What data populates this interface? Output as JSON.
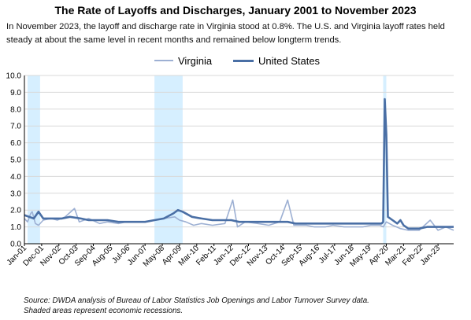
{
  "title": "The Rate of Layoffs and Discharges, January 2001 to November 2023",
  "subtitle": "In November 2023, the layoff and discharge rate in Virginia stood at 0.8%. The U.S. and Virginia layoff rates held steady at about the same level in recent months and remained below longterm trends.",
  "source_lines": [
    "Source: DWDA analysis of Bureau of Labor Statistics Job Openings and Labor Turnover Survey data.",
    "Shaded areas represent economic recessions."
  ],
  "colors": {
    "virginia": "#9db0d3",
    "united_states": "#4a6fa5",
    "recession": "#d6efff",
    "grid": "#d9d9d9"
  },
  "chart_data": {
    "type": "line",
    "title": "The Rate of Layoffs and Discharges, January 2001 to November 2023",
    "xlabel": "",
    "ylabel": "",
    "ylim": [
      0,
      10
    ],
    "yticks": [
      "0.0",
      "1.0",
      "2.0",
      "3.0",
      "4.0",
      "5.0",
      "6.0",
      "7.0",
      "8.0",
      "9.0",
      "10.0"
    ],
    "x_start": "2001-01",
    "x_end": "2023-11",
    "x_tick_labels": [
      "Jan-01",
      "Dec-01",
      "Nov-02",
      "Oct-03",
      "Sep-04",
      "Aug-05",
      "Jul-06",
      "Jun-07",
      "May-08",
      "Apr-09",
      "Mar-10",
      "Feb-11",
      "Jan-12",
      "Dec-12",
      "Nov-13",
      "Oct-14",
      "Sep-15",
      "Aug-16",
      "Jul-17",
      "Jun-18",
      "May-19",
      "Apr-20",
      "Mar-21",
      "Feb-22",
      "Jan-23"
    ],
    "grid": true,
    "legend": "top-center",
    "recessions": [
      [
        "2001-03",
        "2001-11"
      ],
      [
        "2007-12",
        "2009-06"
      ],
      [
        "2020-02",
        "2020-04"
      ]
    ],
    "series": [
      {
        "name": "Virginia",
        "points": [
          [
            "2001-01",
            1.5
          ],
          [
            "2001-03",
            1.3
          ],
          [
            "2001-05",
            1.8
          ],
          [
            "2001-06",
            1.9
          ],
          [
            "2001-08",
            1.2
          ],
          [
            "2001-10",
            1.1
          ],
          [
            "2002-01",
            1.4
          ],
          [
            "2002-06",
            1.5
          ],
          [
            "2002-10",
            1.4
          ],
          [
            "2003-03",
            1.6
          ],
          [
            "2003-09",
            2.1
          ],
          [
            "2003-12",
            1.3
          ],
          [
            "2004-06",
            1.5
          ],
          [
            "2005-01",
            1.2
          ],
          [
            "2005-06",
            1.3
          ],
          [
            "2006-01",
            1.2
          ],
          [
            "2006-06",
            1.3
          ],
          [
            "2007-01",
            1.3
          ],
          [
            "2007-06",
            1.3
          ],
          [
            "2008-01",
            1.4
          ],
          [
            "2008-06",
            1.5
          ],
          [
            "2009-01",
            1.6
          ],
          [
            "2009-04",
            1.4
          ],
          [
            "2009-08",
            1.3
          ],
          [
            "2010-01",
            1.1
          ],
          [
            "2010-06",
            1.2
          ],
          [
            "2011-01",
            1.1
          ],
          [
            "2011-09",
            1.2
          ],
          [
            "2012-02",
            2.6
          ],
          [
            "2012-05",
            1.0
          ],
          [
            "2012-10",
            1.3
          ],
          [
            "2013-06",
            1.2
          ],
          [
            "2014-01",
            1.1
          ],
          [
            "2014-08",
            1.3
          ],
          [
            "2015-01",
            2.6
          ],
          [
            "2015-05",
            1.1
          ],
          [
            "2016-01",
            1.1
          ],
          [
            "2016-06",
            1.0
          ],
          [
            "2017-01",
            1.0
          ],
          [
            "2017-06",
            1.1
          ],
          [
            "2018-01",
            1.0
          ],
          [
            "2018-06",
            1.0
          ],
          [
            "2019-01",
            1.0
          ],
          [
            "2019-06",
            1.1
          ],
          [
            "2019-12",
            1.1
          ],
          [
            "2020-02",
            1.0
          ],
          [
            "2020-04",
            1.3
          ],
          [
            "2020-08",
            1.1
          ],
          [
            "2021-01",
            0.9
          ],
          [
            "2021-06",
            0.8
          ],
          [
            "2022-01",
            0.8
          ],
          [
            "2022-08",
            1.4
          ],
          [
            "2023-01",
            0.8
          ],
          [
            "2023-06",
            1.0
          ],
          [
            "2023-11",
            0.8
          ]
        ]
      },
      {
        "name": "United States",
        "points": [
          [
            "2001-01",
            1.7
          ],
          [
            "2001-04",
            1.6
          ],
          [
            "2001-07",
            1.5
          ],
          [
            "2001-10",
            1.9
          ],
          [
            "2002-01",
            1.5
          ],
          [
            "2002-06",
            1.5
          ],
          [
            "2003-01",
            1.5
          ],
          [
            "2003-06",
            1.6
          ],
          [
            "2004-01",
            1.5
          ],
          [
            "2004-06",
            1.4
          ],
          [
            "2005-01",
            1.4
          ],
          [
            "2005-06",
            1.4
          ],
          [
            "2006-01",
            1.3
          ],
          [
            "2006-06",
            1.3
          ],
          [
            "2007-01",
            1.3
          ],
          [
            "2007-06",
            1.3
          ],
          [
            "2007-12",
            1.4
          ],
          [
            "2008-06",
            1.5
          ],
          [
            "2008-12",
            1.8
          ],
          [
            "2009-03",
            2.0
          ],
          [
            "2009-06",
            1.9
          ],
          [
            "2009-12",
            1.6
          ],
          [
            "2010-06",
            1.5
          ],
          [
            "2011-01",
            1.4
          ],
          [
            "2011-06",
            1.4
          ],
          [
            "2012-01",
            1.4
          ],
          [
            "2012-06",
            1.3
          ],
          [
            "2013-01",
            1.3
          ],
          [
            "2013-06",
            1.3
          ],
          [
            "2014-01",
            1.3
          ],
          [
            "2014-06",
            1.3
          ],
          [
            "2015-01",
            1.3
          ],
          [
            "2015-06",
            1.2
          ],
          [
            "2016-01",
            1.2
          ],
          [
            "2016-06",
            1.2
          ],
          [
            "2017-01",
            1.2
          ],
          [
            "2017-06",
            1.2
          ],
          [
            "2018-01",
            1.2
          ],
          [
            "2018-06",
            1.2
          ],
          [
            "2019-01",
            1.2
          ],
          [
            "2019-06",
            1.2
          ],
          [
            "2020-01",
            1.2
          ],
          [
            "2020-02",
            1.3
          ],
          [
            "2020-03",
            8.6
          ],
          [
            "2020-04",
            6.5
          ],
          [
            "2020-05",
            1.6
          ],
          [
            "2020-08",
            1.4
          ],
          [
            "2020-11",
            1.2
          ],
          [
            "2021-01",
            1.4
          ],
          [
            "2021-03",
            1.1
          ],
          [
            "2021-06",
            0.9
          ],
          [
            "2022-01",
            0.9
          ],
          [
            "2022-06",
            1.0
          ],
          [
            "2023-01",
            1.0
          ],
          [
            "2023-06",
            1.0
          ],
          [
            "2023-11",
            1.0
          ]
        ]
      }
    ]
  }
}
